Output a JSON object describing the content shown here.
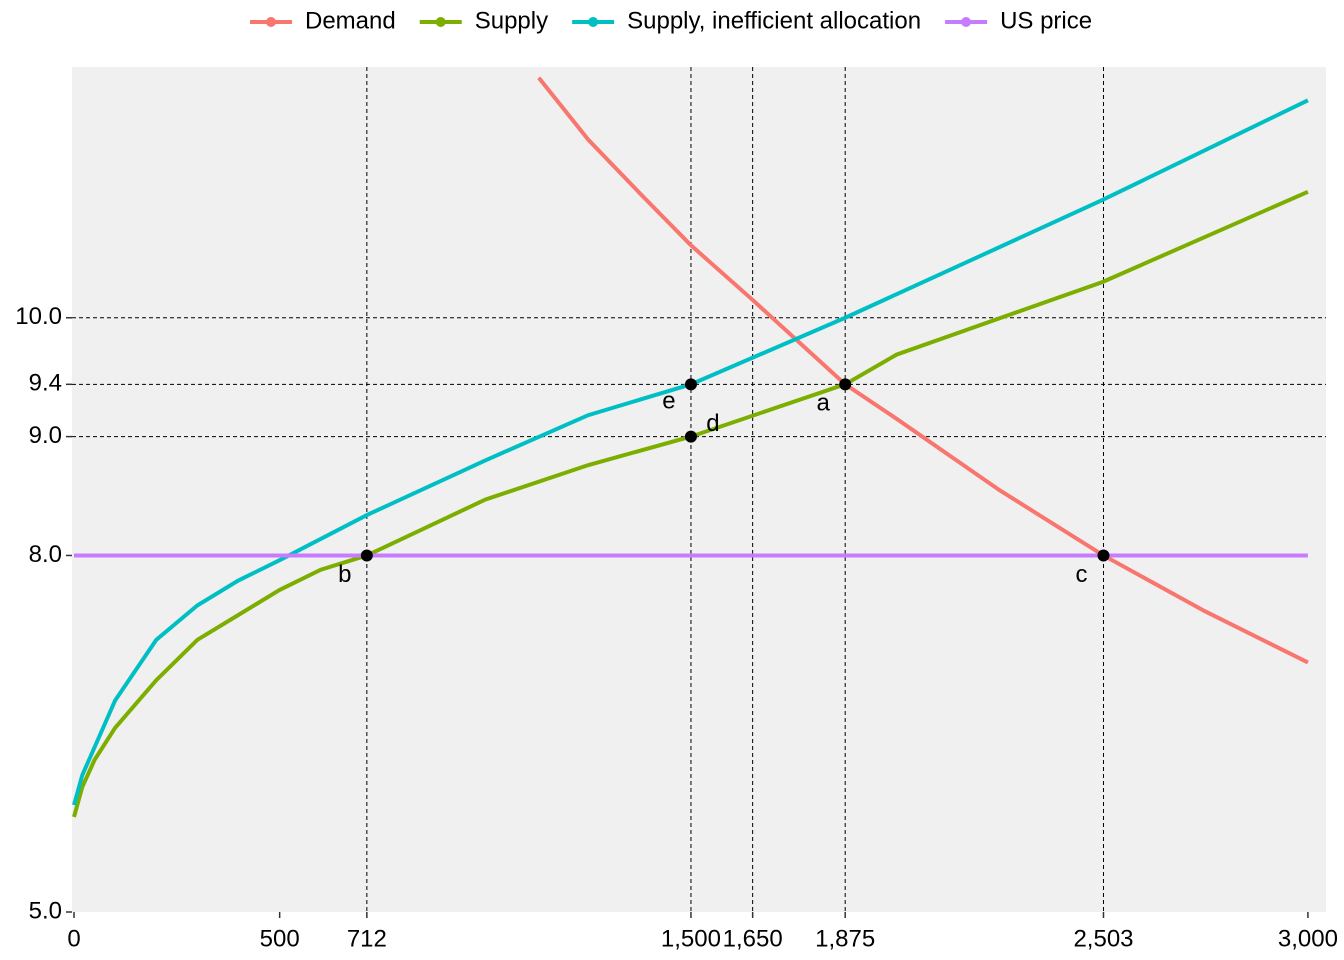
{
  "chart_data": {
    "type": "line",
    "xlim": [
      0,
      3044
    ],
    "ylim": [
      5,
      12.11
    ],
    "xticks": [
      0,
      500,
      712,
      {
        "value": 1500,
        "label": "1,500"
      },
      {
        "value": 1650,
        "label": "1,650"
      },
      {
        "value": 1875,
        "label": "1,875"
      },
      {
        "value": 2503,
        "label": "2,503"
      },
      {
        "value": 3000,
        "label": "3,000"
      }
    ],
    "yticks": [
      {
        "value": 5,
        "label": "5.0"
      },
      {
        "value": 8,
        "label": "8.0"
      },
      {
        "value": 9,
        "label": "9.0"
      },
      {
        "value": 9.44,
        "label": "9.4"
      },
      {
        "value": 10,
        "label": "10.0"
      }
    ],
    "vlines": [
      712,
      1500,
      1650,
      1875,
      2503
    ],
    "hlines": [
      9,
      9.44,
      10
    ],
    "legend_position": "top",
    "series": [
      {
        "name": "Demand",
        "color": "#F8766D",
        "x": [
          1130,
          1250,
          1375,
          1500,
          1650,
          1875,
          2000,
          2250,
          2503,
          2750,
          3000
        ],
        "values": [
          12.02,
          11.5,
          11.05,
          10.61,
          10.15,
          9.44,
          9.15,
          8.55,
          8.0,
          7.53,
          7.1
        ]
      },
      {
        "name": "Supply",
        "color": "#7CAE00",
        "x": [
          0,
          20,
          50,
          100,
          200,
          300,
          400,
          500,
          600,
          712,
          1000,
          1250,
          1500,
          1875,
          2000,
          2500,
          3000
        ],
        "values": [
          5.8,
          6.05,
          6.28,
          6.55,
          6.95,
          7.29,
          7.5,
          7.71,
          7.88,
          8.0,
          8.47,
          8.76,
          9.0,
          9.44,
          9.69,
          10.3,
          11.06
        ]
      },
      {
        "name": "Supply, inefficient allocation",
        "color": "#00BFC4",
        "x": [
          0,
          20,
          100,
          200,
          300,
          400,
          500,
          712,
          1000,
          1250,
          1500,
          1875,
          2500,
          3000
        ],
        "values": [
          5.9,
          6.15,
          6.78,
          7.29,
          7.58,
          7.79,
          7.96,
          8.34,
          8.8,
          9.18,
          9.44,
          10.0,
          10.99,
          11.83
        ]
      },
      {
        "name": "US price",
        "color": "#C77CFF",
        "x": [
          0,
          3000
        ],
        "values": [
          8,
          8
        ]
      }
    ],
    "points": [
      {
        "label": "a",
        "x": 1875,
        "y": 9.44
      },
      {
        "label": "b",
        "x": 712,
        "y": 8
      },
      {
        "label": "c",
        "x": 2503,
        "y": 8
      },
      {
        "label": "d",
        "x": 1500,
        "y": 9
      },
      {
        "label": "e",
        "x": 1500,
        "y": 9.44
      }
    ]
  }
}
